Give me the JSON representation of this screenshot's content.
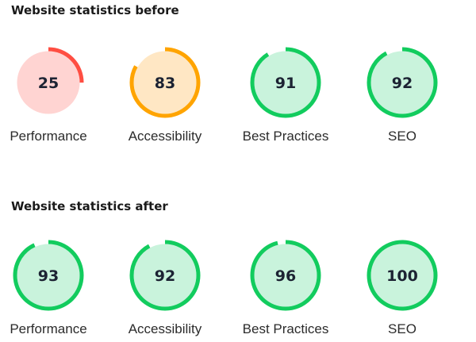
{
  "colors": {
    "good_fill": "#c9f3dc",
    "good_stroke": "#12cc5e",
    "average_fill": "#ffe7c4",
    "average_stroke": "#ffa400",
    "poor_fill": "#ffd4d2",
    "poor_stroke": "#ff4e42",
    "track": "#ffffff"
  },
  "before": {
    "title": "Website statistics before",
    "scores": [
      {
        "label": "Performance",
        "value": 25,
        "status": "poor"
      },
      {
        "label": "Accessibility",
        "value": 83,
        "status": "average"
      },
      {
        "label": "Best Practices",
        "value": 91,
        "status": "good"
      },
      {
        "label": "SEO",
        "value": 92,
        "status": "good"
      }
    ]
  },
  "after": {
    "title": "Website statistics after",
    "scores": [
      {
        "label": "Performance",
        "value": 93,
        "status": "good"
      },
      {
        "label": "Accessibility",
        "value": 92,
        "status": "good"
      },
      {
        "label": "Best Practices",
        "value": 96,
        "status": "good"
      },
      {
        "label": "SEO",
        "value": 100,
        "status": "good"
      }
    ]
  }
}
